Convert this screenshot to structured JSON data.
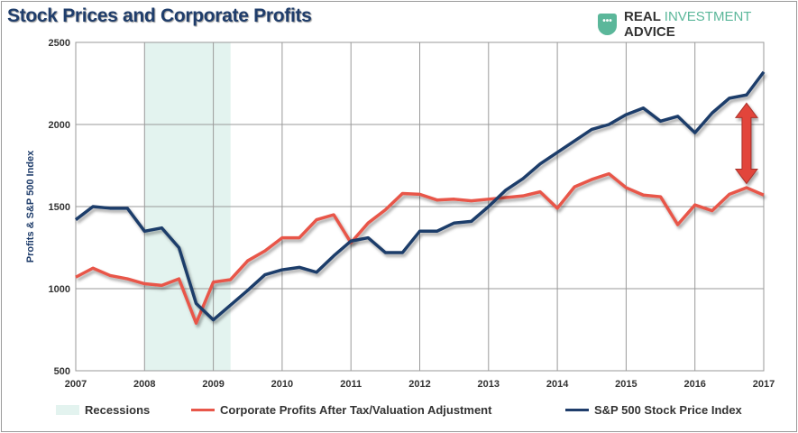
{
  "header": {
    "title": "Stock Prices and Corporate Profits",
    "brand_part1": "REAL",
    "brand_part2": "INVESTMENT",
    "brand_part3": "ADVICE",
    "brand_icon": "shield-icon"
  },
  "colors": {
    "profits": "#e8574a",
    "sp500": "#1f3d6b",
    "recession": "#e3f3ef",
    "arrow": "#e2453b"
  },
  "chart_data": {
    "type": "line",
    "title": "Stock Prices and Corporate Profits",
    "xlabel": "",
    "ylabel": "Profits & S&P 500 Index",
    "xlim": [
      2007,
      2017
    ],
    "ylim": [
      500,
      2500
    ],
    "x_ticks": [
      "2007",
      "2008",
      "2009",
      "2010",
      "2011",
      "2012",
      "2013",
      "2014",
      "2015",
      "2016",
      "2017"
    ],
    "y_ticks": [
      "500",
      "1000",
      "1500",
      "2000",
      "2500"
    ],
    "grid": true,
    "recessions": [
      {
        "label": "Recessions",
        "start": 2008.0,
        "end": 2009.25
      }
    ],
    "x": [
      2007,
      2007.25,
      2007.5,
      2007.75,
      2008,
      2008.25,
      2008.5,
      2008.75,
      2009,
      2009.25,
      2009.5,
      2009.75,
      2010,
      2010.25,
      2010.5,
      2010.75,
      2011,
      2011.25,
      2011.5,
      2011.75,
      2012,
      2012.25,
      2012.5,
      2012.75,
      2013,
      2013.25,
      2013.5,
      2013.75,
      2014,
      2014.25,
      2014.5,
      2014.75,
      2015,
      2015.25,
      2015.5,
      2015.75,
      2016,
      2016.25,
      2016.5,
      2016.75,
      2017
    ],
    "series": [
      {
        "name": "Corporate Profits After Tax/Valuation Adjustment",
        "values": [
          1070,
          1125,
          1080,
          1060,
          1030,
          1020,
          1060,
          790,
          1040,
          1055,
          1170,
          1230,
          1310,
          1310,
          1420,
          1450,
          1280,
          1400,
          1480,
          1580,
          1575,
          1540,
          1545,
          1535,
          1545,
          1555,
          1565,
          1590,
          1490,
          1620,
          1665,
          1700,
          1615,
          1570,
          1560,
          1390,
          1510,
          1475,
          1575,
          1615,
          1570
        ]
      },
      {
        "name": "S&P 500 Stock Price Index",
        "values": [
          1420,
          1500,
          1490,
          1490,
          1350,
          1370,
          1250,
          910,
          810,
          900,
          990,
          1085,
          1115,
          1130,
          1100,
          1200,
          1290,
          1310,
          1220,
          1220,
          1350,
          1350,
          1400,
          1410,
          1500,
          1600,
          1670,
          1760,
          1830,
          1900,
          1970,
          2000,
          2060,
          2100,
          2020,
          2050,
          1950,
          2070,
          2160,
          2180,
          2320
        ]
      }
    ],
    "annotations": [
      {
        "type": "double-arrow",
        "x": 2016.75,
        "from": 1640,
        "to": 2130
      }
    ],
    "legend": {
      "placement": "bottom",
      "entries": [
        "Recessions",
        "Corporate Profits After Tax/Valuation Adjustment",
        "S&P 500 Stock Price Index"
      ]
    }
  }
}
